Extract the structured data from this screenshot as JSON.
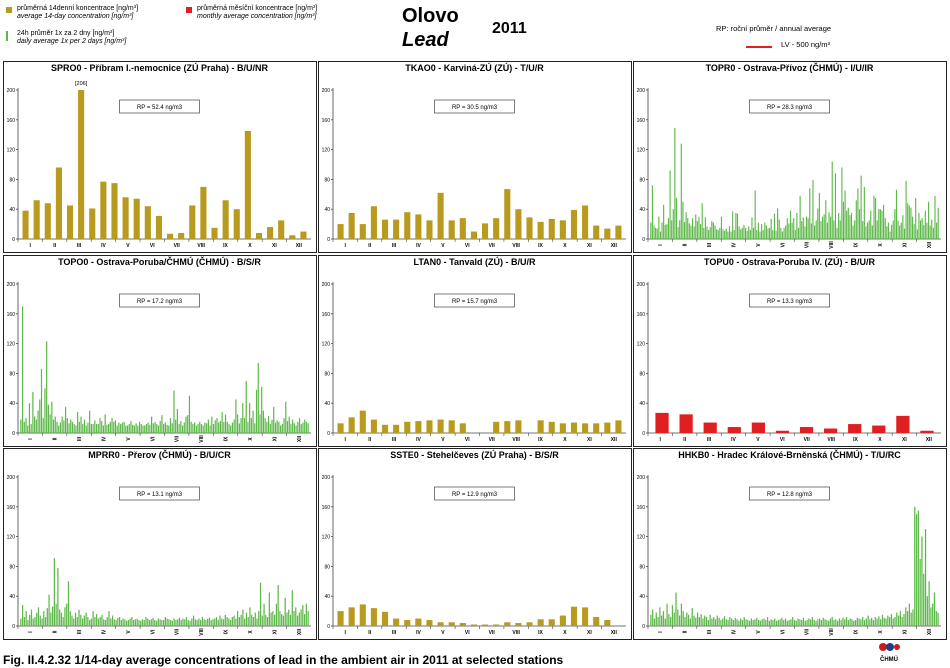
{
  "header": {
    "title_cz": "Olovo",
    "title_en": "Lead",
    "year": "2011",
    "legend_14day_1": "průměrná 14denní koncentrace [ng/m³]",
    "legend_14day_2": "average 14-day concentration [ng/m³]",
    "legend_24h_1": "24h průměr 1x za 2 dny [ng/m³]",
    "legend_24h_2": "daily average 1x per 2 days [ng/m³]",
    "legend_monthly_1": "průměrná  měsíční koncentrace [ng/m³]",
    "legend_monthly_2": "monthly average concentration [ng/m³]",
    "rp_legend": "RP: roční průměr / annual average",
    "lv_legend": "LV - 500 ng/m³"
  },
  "caption": "Fig. II.4.2.32  1/14-day average concentrations of lead in the ambient air in 2011 at selected stations",
  "logo_text": "ČHMÚ",
  "colors": {
    "fourteen_day": "#b89b1e",
    "daily": "#5cb848",
    "monthly": "#e02020",
    "lv_line": "#e02020"
  },
  "chart_data": [
    {
      "type": "bar",
      "title": "SPRO0 - Příbram I.-nemocnice (ZÚ Praha) - B/U/NR",
      "series_type": "fourteen_day",
      "rp": "RP = 52.4 ng/m3",
      "ylim": [
        0,
        200
      ],
      "yticks": [
        0,
        40,
        80,
        120,
        160,
        200
      ],
      "months": [
        "I",
        "II",
        "III",
        "IV",
        "V",
        "VI",
        "VII",
        "VIII",
        "IX",
        "X",
        "XI",
        "XII"
      ],
      "values": [
        38,
        52,
        48,
        96,
        45,
        200,
        41,
        77,
        75,
        56,
        54,
        44,
        31,
        7,
        8,
        45,
        70,
        15,
        52,
        40,
        145,
        8,
        16,
        25,
        5,
        10
      ],
      "annotation": "[206]",
      "annotation_index": 5
    },
    {
      "type": "bar",
      "title": "TKAO0 - Karviná-ZÚ (ZÚ) - T/U/R",
      "series_type": "fourteen_day",
      "rp": "RP = 30.5 ng/m3",
      "ylim": [
        0,
        200
      ],
      "yticks": [
        0,
        40,
        80,
        120,
        160,
        200
      ],
      "months": [
        "I",
        "II",
        "III",
        "IV",
        "V",
        "VI",
        "VII",
        "VIII",
        "IX",
        "X",
        "XI",
        "XII"
      ],
      "values": [
        20,
        35,
        20,
        44,
        26,
        26,
        36,
        33,
        25,
        62,
        25,
        28,
        10,
        21,
        28,
        67,
        40,
        29,
        23,
        27,
        25,
        39,
        45,
        18,
        14,
        18
      ]
    },
    {
      "type": "bar",
      "title": "TOPR0 - Ostrava-Přívoz (ČHMÚ) - I/U/IR",
      "series_type": "daily",
      "rp": "RP = 28.3 ng/m3",
      "ylim": [
        0,
        200
      ],
      "yticks": [
        0,
        40,
        80,
        120,
        160,
        200
      ],
      "months": [
        "I",
        "II",
        "III",
        "IV",
        "V",
        "VI",
        "VII",
        "VIII",
        "IX",
        "X",
        "XI",
        "XII"
      ],
      "values": [
        22,
        72,
        18,
        15,
        14,
        30,
        10,
        22,
        46,
        19,
        20,
        28,
        92,
        25,
        40,
        149,
        55,
        16,
        25,
        128,
        50,
        23,
        36,
        28,
        21,
        18,
        28,
        17,
        33,
        24,
        30,
        20,
        48,
        15,
        29,
        17,
        12,
        16,
        24,
        22,
        18,
        13,
        12,
        15,
        30,
        13,
        11,
        14,
        10,
        17,
        10,
        37,
        12,
        35,
        34,
        17,
        13,
        15,
        19,
        15,
        11,
        17,
        12,
        29,
        15,
        65,
        12,
        22,
        10,
        20,
        12,
        22,
        18,
        14,
        15,
        27,
        12,
        34,
        11,
        41,
        26,
        15,
        10,
        15,
        18,
        28,
        21,
        38,
        22,
        28,
        12,
        35,
        15,
        58,
        24,
        29,
        17,
        30,
        28,
        68,
        21,
        79,
        18,
        25,
        41,
        62,
        24,
        30,
        33,
        52,
        22,
        36,
        30,
        104,
        25,
        88,
        15,
        35,
        25,
        96,
        50,
        65,
        38,
        42,
        32,
        35,
        18,
        25,
        52,
        68,
        40,
        85,
        24,
        70,
        17,
        22,
        25,
        38,
        18,
        58,
        55,
        25,
        40,
        40,
        38,
        46,
        28,
        17,
        22,
        10,
        19,
        25,
        40,
        66,
        25,
        18,
        22,
        32,
        14,
        78,
        48,
        45,
        42,
        30,
        20,
        55,
        13,
        35,
        25,
        28,
        19,
        38,
        22,
        50,
        18,
        26,
        15,
        58,
        22,
        42
      ]
    },
    {
      "type": "bar",
      "title": "TOPO0 - Ostrava-Poruba/ČHMÚ (ČHMÚ) - B/S/R",
      "series_type": "daily",
      "rp": "RP = 17.2 ng/m3",
      "ylim": [
        0,
        200
      ],
      "yticks": [
        0,
        40,
        80,
        120,
        160,
        200
      ],
      "months": [
        "I",
        "II",
        "III",
        "IV",
        "V",
        "VI",
        "VII",
        "VIII",
        "IX",
        "X",
        "XI",
        "XII"
      ],
      "values": [
        18,
        170,
        15,
        20,
        10,
        40,
        12,
        55,
        22,
        18,
        30,
        45,
        86,
        20,
        60,
        123,
        38,
        25,
        42,
        18,
        22,
        15,
        10,
        14,
        22,
        17,
        35,
        20,
        13,
        18,
        15,
        12,
        10,
        28,
        15,
        22,
        12,
        18,
        10,
        14,
        30,
        12,
        12,
        17,
        12,
        12,
        20,
        16,
        10,
        25,
        11,
        12,
        15,
        20,
        15,
        17,
        10,
        14,
        12,
        14,
        15,
        10,
        10,
        12,
        16,
        11,
        10,
        13,
        10,
        15,
        12,
        10,
        10,
        12,
        14,
        11,
        22,
        13,
        15,
        12,
        10,
        16,
        24,
        12,
        14,
        11,
        10,
        20,
        13,
        57,
        18,
        32,
        12,
        16,
        10,
        14,
        22,
        24,
        50,
        15,
        12,
        14,
        10,
        12,
        15,
        12,
        10,
        14,
        13,
        18,
        10,
        22,
        12,
        17,
        20,
        14,
        16,
        28,
        15,
        25,
        15,
        12,
        10,
        14,
        18,
        45,
        25,
        13,
        20,
        40,
        20,
        70,
        15,
        40,
        20,
        30,
        13,
        58,
        94,
        25,
        62,
        30,
        20,
        15,
        23,
        12,
        18,
        35,
        14,
        17,
        15,
        10,
        12,
        20,
        42,
        16,
        22,
        12,
        18,
        13,
        10,
        15,
        20,
        12,
        14,
        18,
        15,
        13
      ]
    },
    {
      "type": "bar",
      "title": "LTAN0 - Tanvald (ZÚ) - B/U/R",
      "series_type": "fourteen_day",
      "rp": "RP = 15.7 ng/m3",
      "ylim": [
        0,
        200
      ],
      "yticks": [
        0,
        40,
        80,
        120,
        160,
        200
      ],
      "months": [
        "I",
        "II",
        "III",
        "IV",
        "V",
        "VI",
        "VII",
        "VIII",
        "IX",
        "X",
        "XI",
        "XII"
      ],
      "values": [
        13,
        21,
        30,
        18,
        11,
        11,
        15,
        16,
        17,
        18,
        17,
        13,
        0,
        0,
        15,
        16,
        17,
        0,
        17,
        15,
        13,
        14,
        13,
        13,
        14,
        17
      ]
    },
    {
      "type": "bar",
      "title": "TOPU0 - Ostrava-Poruba IV. (ZÚ) - B/U/R",
      "series_type": "monthly",
      "rp": "RP = 13.3 ng/m3",
      "ylim": [
        0,
        200
      ],
      "yticks": [
        0,
        40,
        80,
        120,
        160,
        200
      ],
      "months": [
        "I",
        "II",
        "III",
        "IV",
        "V",
        "VI",
        "VII",
        "VIII",
        "IX",
        "X",
        "XI",
        "XII"
      ],
      "values": [
        27,
        25,
        14,
        8,
        14,
        3,
        8,
        6,
        12,
        10,
        23,
        3
      ]
    },
    {
      "type": "bar",
      "title": "MPRR0 - Přerov (ČHMÚ) - B/U/CR",
      "series_type": "daily",
      "rp": "RP = 13.1 ng/m3",
      "ylim": [
        0,
        200
      ],
      "yticks": [
        0,
        40,
        80,
        120,
        160,
        200
      ],
      "months": [
        "I",
        "II",
        "III",
        "IV",
        "V",
        "VI",
        "VII",
        "VIII",
        "IX",
        "X",
        "XI",
        "XII"
      ],
      "values": [
        10,
        28,
        12,
        20,
        8,
        15,
        22,
        10,
        12,
        18,
        25,
        14,
        10,
        20,
        12,
        24,
        42,
        18,
        26,
        91,
        30,
        78,
        22,
        18,
        12,
        25,
        30,
        60,
        20,
        14,
        10,
        18,
        12,
        22,
        15,
        10,
        14,
        18,
        12,
        8,
        10,
        20,
        12,
        16,
        10,
        12,
        15,
        9,
        8,
        12,
        20,
        10,
        14,
        9,
        8,
        11,
        12,
        8,
        10,
        9,
        7,
        8,
        10,
        12,
        8,
        9,
        10,
        8,
        7,
        9,
        8,
        12,
        10,
        8,
        9,
        11,
        8,
        7,
        10,
        9,
        8,
        8,
        12,
        10,
        9,
        8,
        7,
        10,
        8,
        9,
        11,
        8,
        10,
        9,
        12,
        8,
        7,
        10,
        14,
        9,
        8,
        10,
        8,
        12,
        9,
        8,
        10,
        11,
        8,
        9,
        10,
        12,
        8,
        14,
        10,
        9,
        15,
        12,
        10,
        8,
        12,
        14,
        10,
        20,
        12,
        15,
        22,
        10,
        18,
        12,
        25,
        15,
        12,
        18,
        10,
        20,
        58,
        14,
        30,
        15,
        12,
        45,
        18,
        20,
        15,
        30,
        55,
        20,
        16,
        14,
        38,
        18,
        22,
        15,
        48,
        20,
        25,
        14,
        18,
        22,
        28,
        16,
        30,
        20
      ]
    },
    {
      "type": "bar",
      "title": "SSTE0 - Stehelčeves (ZÚ Praha) - B/S/R",
      "series_type": "fourteen_day",
      "rp": "RP = 12.9 ng/m3",
      "ylim": [
        0,
        200
      ],
      "yticks": [
        0,
        40,
        80,
        120,
        160,
        200
      ],
      "months": [
        "I",
        "II",
        "III",
        "IV",
        "V",
        "VI",
        "VII",
        "VIII",
        "IX",
        "X",
        "XI",
        "XII"
      ],
      "values": [
        20,
        25,
        29,
        24,
        19,
        10,
        8,
        10,
        8,
        5,
        5,
        4,
        2,
        2,
        2,
        5,
        4,
        5,
        9,
        9,
        14,
        26,
        25,
        12,
        8,
        0
      ]
    },
    {
      "type": "bar",
      "title": "HHKB0 - Hradec Králové-Brněnská (ČHMÚ) - T/U/RC",
      "series_type": "daily",
      "rp": "RP = 12.8 ng/m3",
      "ylim": [
        0,
        200
      ],
      "yticks": [
        0,
        40,
        80,
        120,
        160,
        200
      ],
      "months": [
        "I",
        "II",
        "III",
        "IV",
        "V",
        "VI",
        "VII",
        "VIII",
        "IX",
        "X",
        "XI",
        "XII"
      ],
      "values": [
        15,
        22,
        10,
        18,
        12,
        25,
        14,
        20,
        10,
        30,
        16,
        12,
        28,
        18,
        45,
        22,
        14,
        30,
        20,
        12,
        18,
        15,
        10,
        24,
        14,
        11,
        18,
        12,
        16,
        10,
        14,
        12,
        8,
        15,
        10,
        12,
        9,
        14,
        11,
        8,
        10,
        13,
        9,
        8,
        12,
        10,
        8,
        11,
        9,
        7,
        10,
        8,
        12,
        9,
        8,
        7,
        10,
        8,
        9,
        11,
        8,
        7,
        9,
        10,
        8,
        12,
        7,
        9,
        8,
        10,
        7,
        8,
        9,
        11,
        8,
        10,
        7,
        8,
        9,
        12,
        8,
        7,
        10,
        9,
        8,
        11,
        7,
        8,
        10,
        9,
        12,
        8,
        7,
        9,
        10,
        8,
        11,
        9,
        8,
        7,
        10,
        12,
        8,
        9,
        7,
        10,
        8,
        11,
        9,
        12,
        8,
        10,
        9,
        7,
        8,
        11,
        10,
        9,
        12,
        8,
        10,
        14,
        9,
        11,
        8,
        12,
        10,
        13,
        9,
        15,
        11,
        10,
        14,
        12,
        16,
        10,
        12,
        18,
        14,
        20,
        12,
        16,
        25,
        20,
        30,
        18,
        22,
        160,
        150,
        155,
        90,
        120,
        70,
        130,
        40,
        60,
        25,
        30,
        45,
        20,
        18
      ]
    }
  ]
}
